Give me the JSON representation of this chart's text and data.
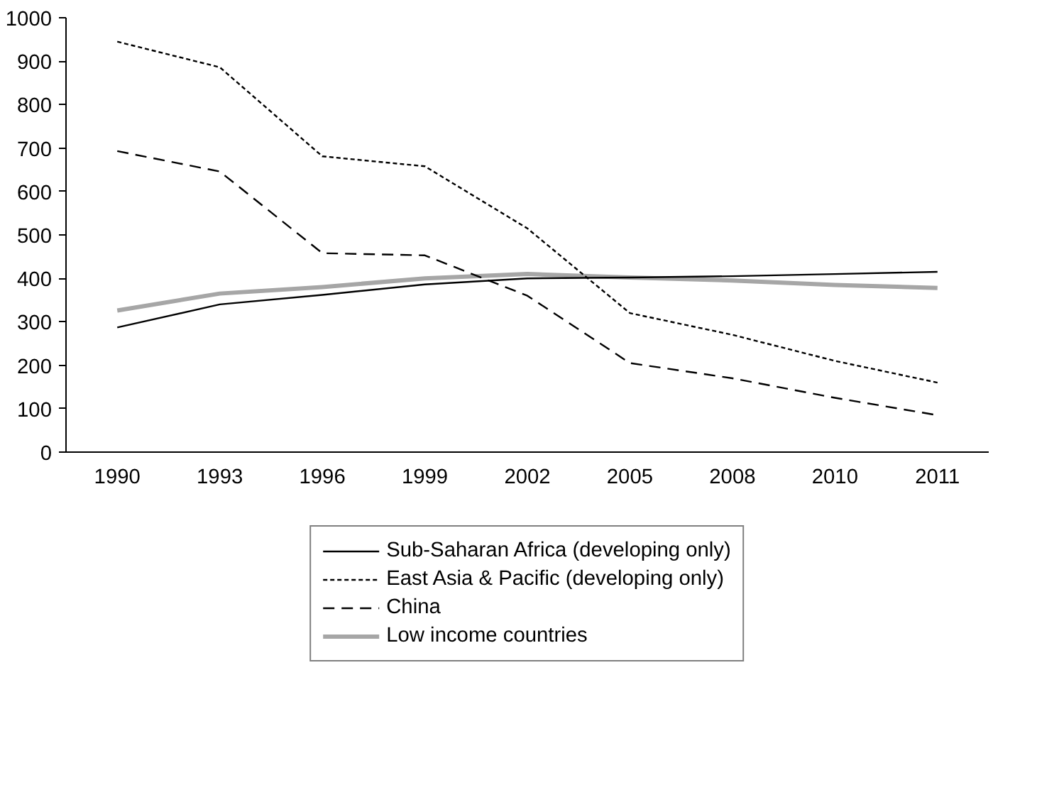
{
  "chart_data": {
    "type": "line",
    "categories": [
      "1990",
      "1993",
      "1996",
      "1999",
      "2002",
      "2005",
      "2008",
      "2010",
      "2011"
    ],
    "ylim": [
      0,
      1000
    ],
    "yticks": [
      0,
      100,
      200,
      300,
      400,
      500,
      600,
      700,
      800,
      900,
      1000
    ],
    "grid": false,
    "legend": "bottom",
    "marker": "none",
    "series": [
      {
        "name": "Sub-Saharan Africa (developing only)",
        "color": "#000000",
        "line_style": "solid",
        "values": [
          287,
          340,
          362,
          386,
          400,
          402,
          405,
          410,
          415
        ]
      },
      {
        "name": "East Asia & Pacific (developing only)",
        "color": "#000000",
        "line_style": "dotted",
        "values": [
          945,
          886,
          681,
          658,
          515,
          320,
          270,
          210,
          160
        ]
      },
      {
        "name": "China",
        "color": "#000000",
        "line_style": "dashed",
        "values": [
          693,
          646,
          458,
          453,
          360,
          205,
          170,
          125,
          85
        ]
      },
      {
        "name": "Low income countries",
        "color": "#a6a6a6",
        "line_style": "solid",
        "values": [
          326,
          365,
          380,
          400,
          410,
          402,
          395,
          385,
          378
        ]
      }
    ]
  }
}
